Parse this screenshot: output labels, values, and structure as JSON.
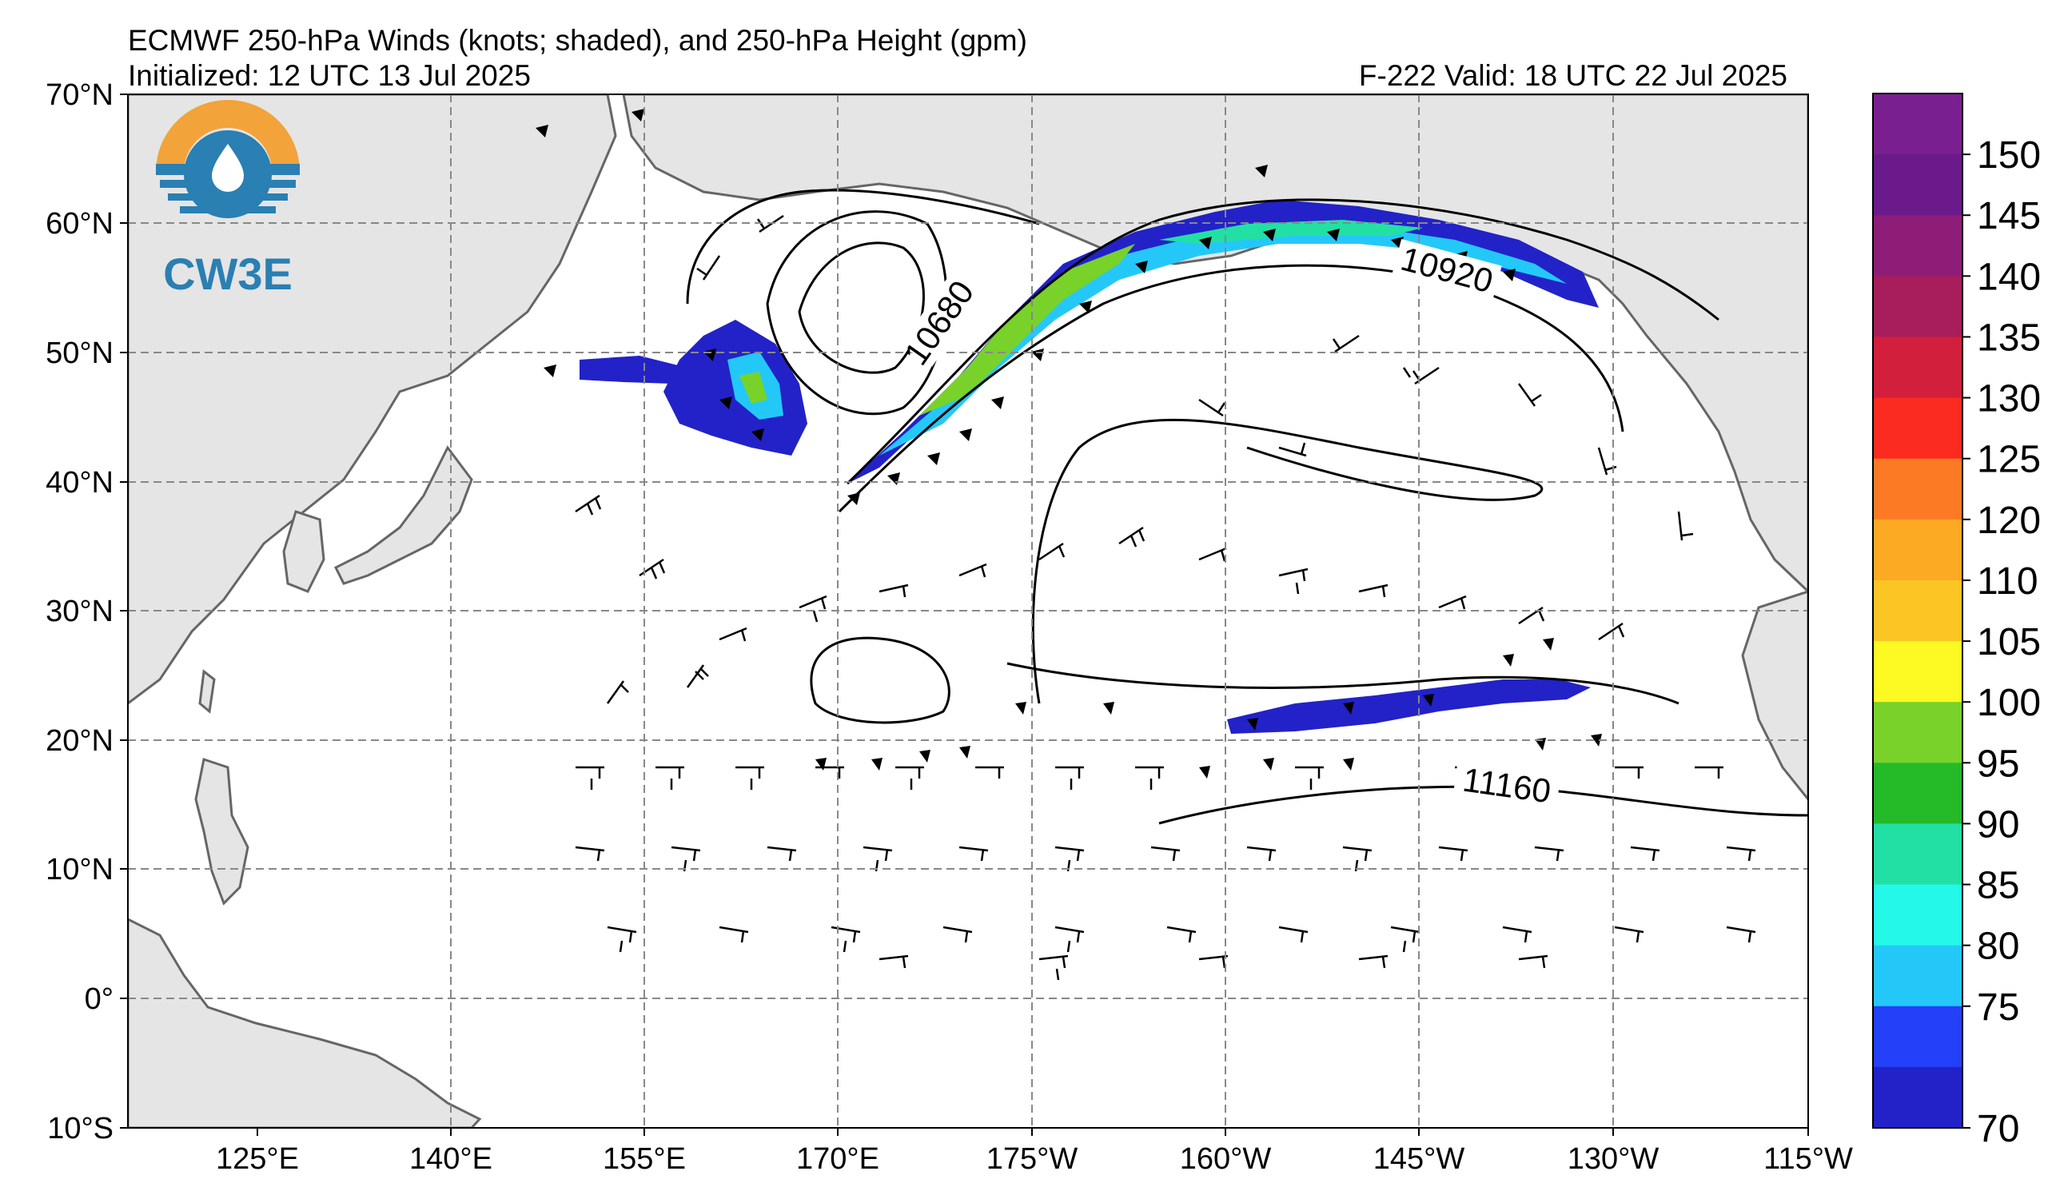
{
  "header": {
    "title": "ECMWF 250-hPa Winds (knots; shaded), and 250-hPa Height (gpm)",
    "init": "Initialized: 12 UTC 13 Jul 2025",
    "valid": "F-222  Valid: 18 UTC 22 Jul 2025"
  },
  "logo": {
    "text": "CW3E",
    "colors": {
      "ring": "#f2a33a",
      "disc": "#2a7fb3"
    }
  },
  "map": {
    "lat_labels": [
      "70°N",
      "60°N",
      "50°N",
      "40°N",
      "30°N",
      "20°N",
      "10°N",
      "0°",
      "10°S"
    ],
    "lon_labels": [
      "125°E",
      "140°E",
      "155°E",
      "170°E",
      "175°W",
      "160°W",
      "145°W",
      "130°W",
      "115°W"
    ],
    "contour_labels": [
      "10680",
      "10920",
      "11160"
    ],
    "land_color": "#e5e5e5",
    "coast_color": "#666666"
  },
  "colorbar": {
    "labels": [
      "150",
      "145",
      "140",
      "135",
      "130",
      "125",
      "120",
      "110",
      "105",
      "100",
      "95",
      "90",
      "85",
      "80",
      "75",
      "70"
    ],
    "colors": [
      "#6a1a8a",
      "#8e1d78",
      "#a81d5c",
      "#d21f3c",
      "#fb2b20",
      "#fc7a24",
      "#fca923",
      "#fbc623",
      "#fcf923",
      "#78d22a",
      "#24ba28",
      "#22e0a4",
      "#24f8e8",
      "#24c8f8",
      "#2440f8",
      "#2222c8"
    ]
  },
  "legend_swatch": {
    "wind_min_knots": 70,
    "wind_max_knots": 155
  }
}
